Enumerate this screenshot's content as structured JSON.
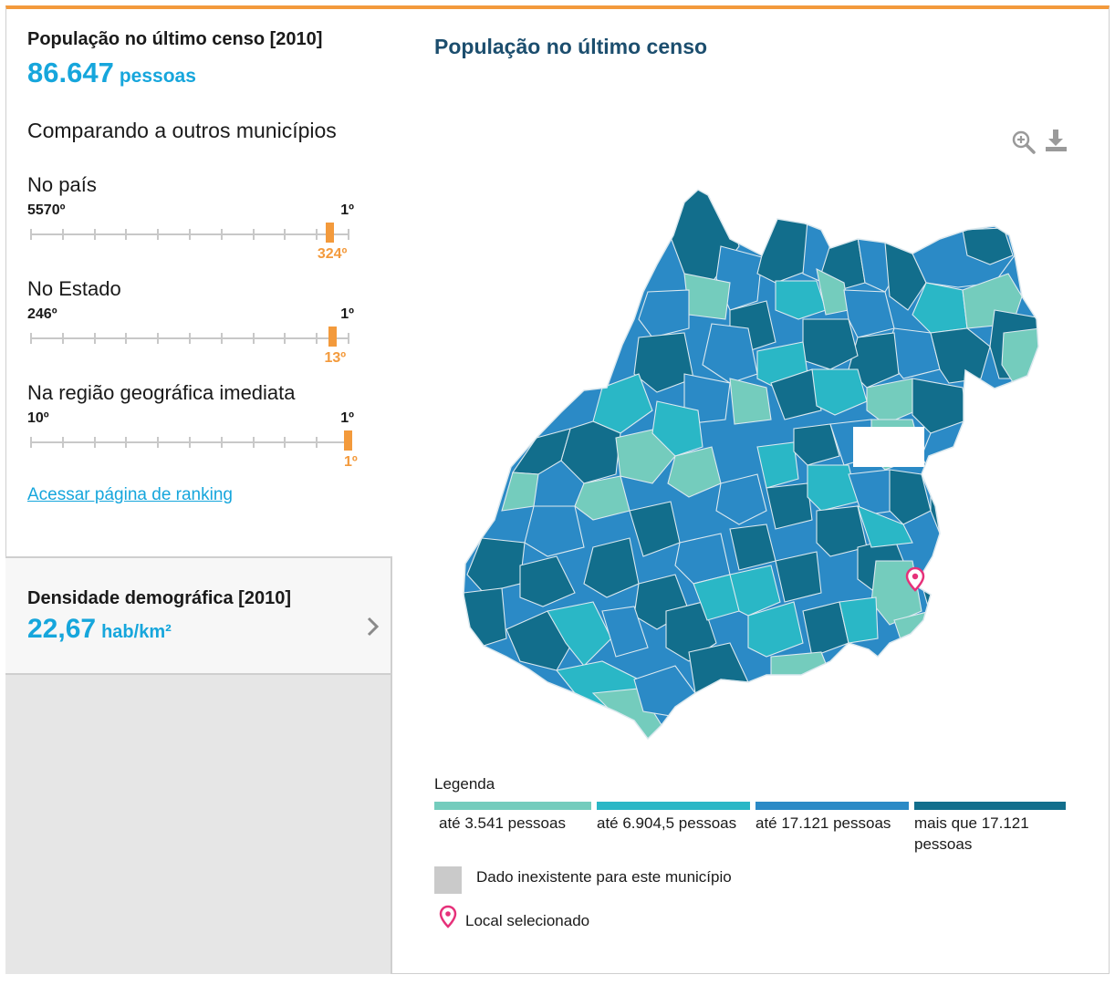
{
  "summary": {
    "title": "População no último censo [2010]",
    "value": "86.647",
    "unit": "pessoas"
  },
  "compare": {
    "title": "Comparando a outros municípios",
    "rankings": [
      {
        "label": "No país",
        "min": "5570º",
        "max": "1º",
        "position": "324º",
        "fraction": 0.942
      },
      {
        "label": "No Estado",
        "min": "246º",
        "max": "1º",
        "position": "13º",
        "fraction": 0.951
      },
      {
        "label": "Na região geográfica imediata",
        "min": "10º",
        "max": "1º",
        "position": "1º",
        "fraction": 1.0
      }
    ],
    "link": "Acessar página de ranking"
  },
  "density": {
    "title": "Densidade demográfica [2010]",
    "value": "22,67",
    "unit": "hab/km²"
  },
  "map": {
    "title": "População no último censo",
    "icons": [
      "zoom-in-icon",
      "download-icon"
    ]
  },
  "legend": {
    "title": "Legenda",
    "items": [
      {
        "label": "até 3.541 pessoas",
        "color": "#74ccbd"
      },
      {
        "label": "até 6.904,5 pessoas",
        "color": "#2ab7c6"
      },
      {
        "label": "até 17.121 pessoas",
        "color": "#2b8ac6"
      },
      {
        "label": "mais que 17.121 pessoas",
        "color": "#126e8c"
      }
    ],
    "missing": "Dado inexistente para este município",
    "missing_color": "#cacaca",
    "selected": "Local selecionado",
    "pin_color": "#e6317a"
  },
  "colors": {
    "accent": "#f39a3c",
    "value": "#16a6dc",
    "title": "#1c4e6e"
  }
}
